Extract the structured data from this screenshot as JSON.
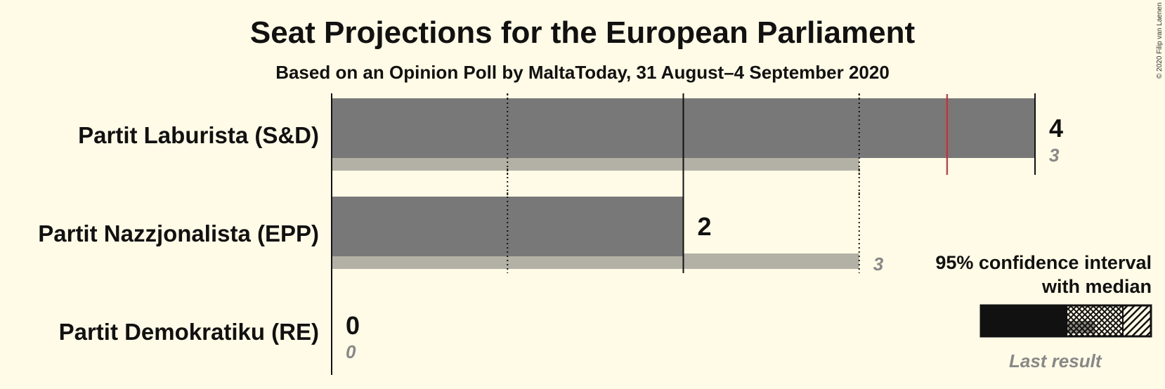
{
  "title": "Seat Projections for the European Parliament",
  "subtitle": "Based on an Opinion Poll by MaltaToday, 31 August–4 September 2020",
  "copyright": "© 2020 Filip van Laenen",
  "legend": {
    "ci_title_line1": "95% confidence interval",
    "ci_title_line2": "with median",
    "last_result": "Last result"
  },
  "colors": {
    "bar": "#787878",
    "last_result_bar": "#b3b1a5",
    "majority_line": "#e0202a",
    "background": "#fffbe6"
  },
  "chart_data": {
    "type": "bar",
    "orientation": "horizontal",
    "categories": [
      "Partit Laburista (S&D)",
      "Partit Nazzjonalista (EPP)",
      "Partit Demokratiku (RE)"
    ],
    "series": [
      {
        "name": "Median",
        "values": [
          4,
          2,
          0
        ]
      },
      {
        "name": "Last result",
        "values": [
          3,
          3,
          0
        ]
      }
    ],
    "median_labels": [
      "4",
      "2",
      "0"
    ],
    "last_result_labels": [
      "3",
      "3",
      "0"
    ],
    "majority_threshold": 3.5,
    "xlim": [
      0,
      4
    ],
    "ticks": [
      0,
      1,
      2,
      3,
      4
    ],
    "grid": true
  }
}
